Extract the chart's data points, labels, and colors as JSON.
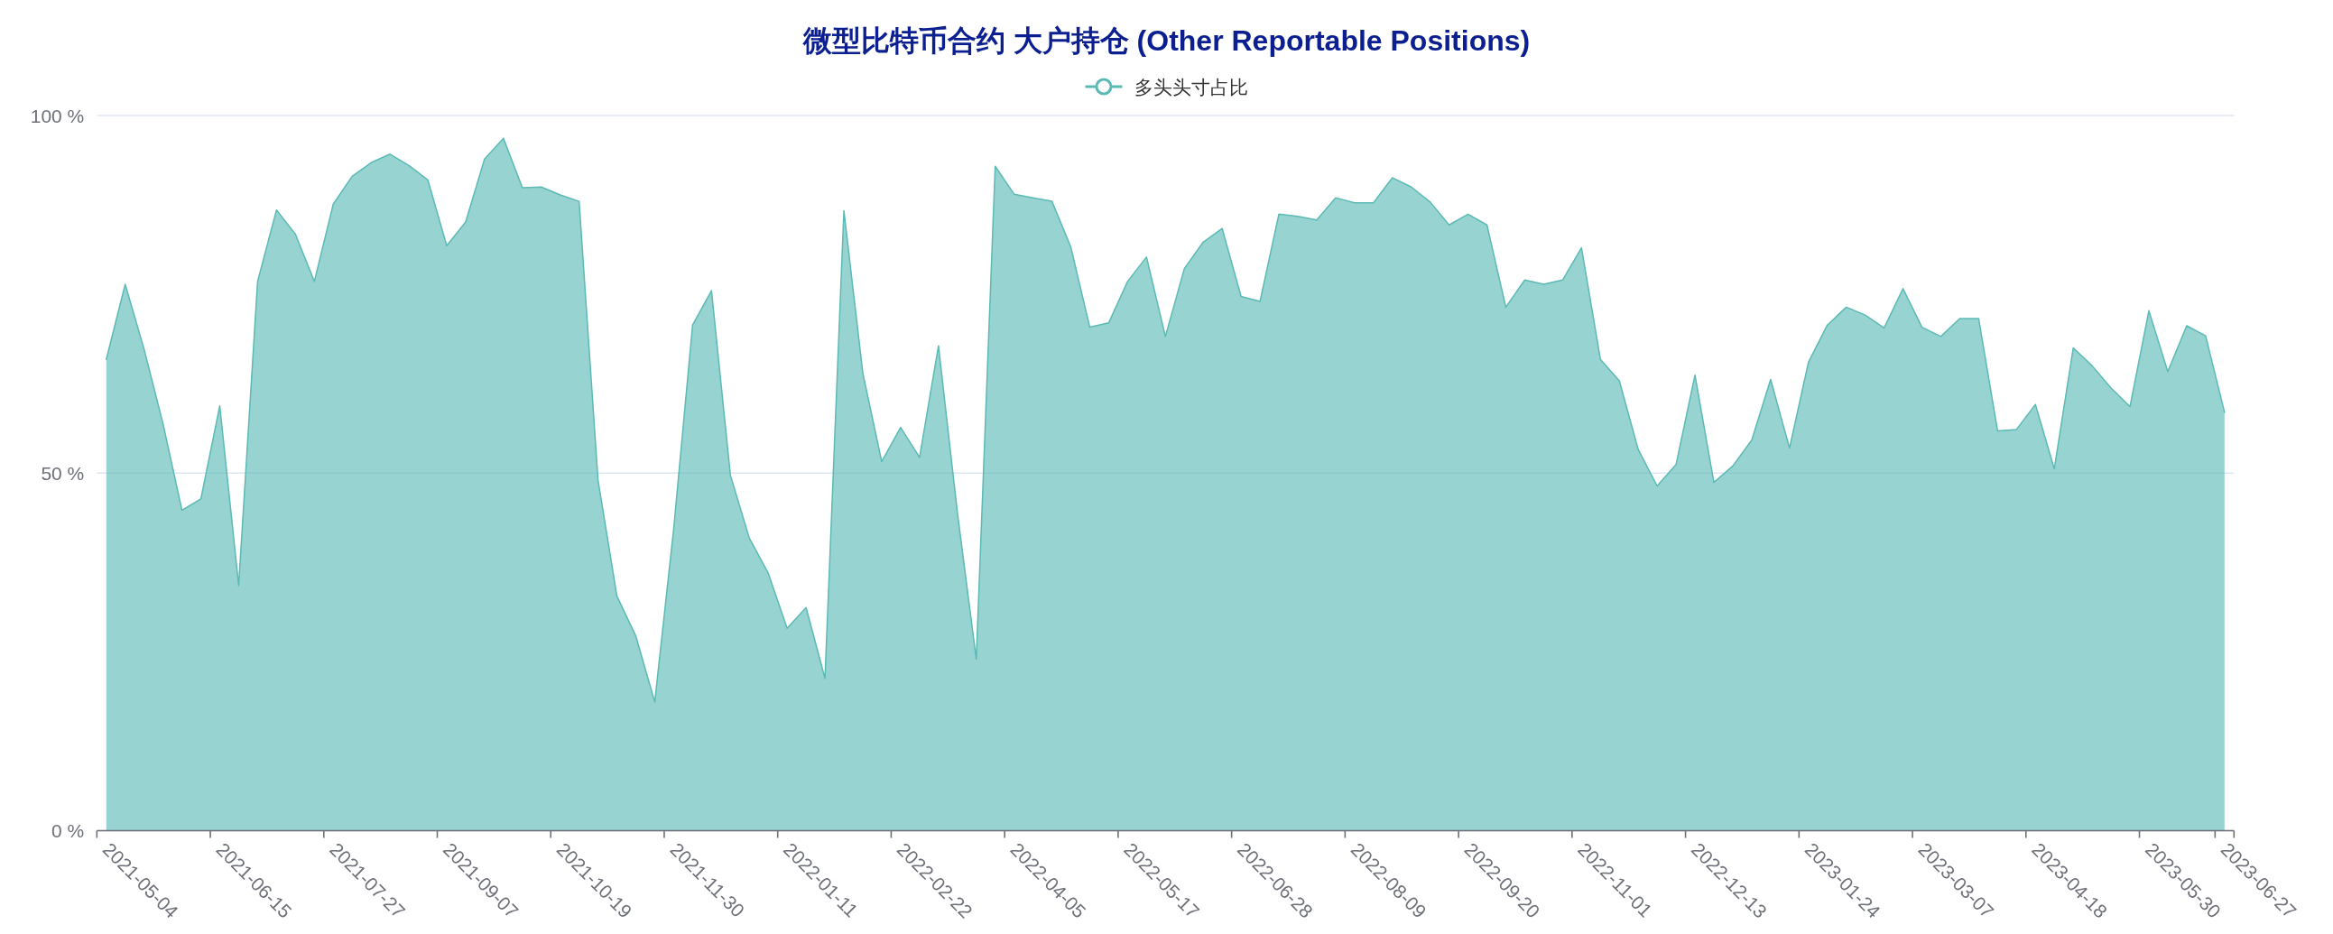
{
  "chart_data": {
    "type": "area",
    "title": "微型比特币合约 大户持仓 (Other Reportable Positions)",
    "categories": [
      "2021-05-04",
      null,
      null,
      null,
      null,
      null,
      "2021-06-15",
      null,
      null,
      null,
      null,
      null,
      "2021-07-27",
      null,
      null,
      null,
      null,
      null,
      "2021-09-07",
      null,
      null,
      null,
      null,
      null,
      "2021-10-19",
      null,
      null,
      null,
      null,
      null,
      "2021-11-30",
      null,
      null,
      null,
      null,
      null,
      "2022-01-11",
      null,
      null,
      null,
      null,
      null,
      "2022-02-22",
      null,
      null,
      null,
      null,
      null,
      "2022-04-05",
      null,
      null,
      null,
      null,
      null,
      "2022-05-17",
      null,
      null,
      null,
      null,
      null,
      "2022-06-28",
      null,
      null,
      null,
      null,
      null,
      "2022-08-09",
      null,
      null,
      null,
      null,
      null,
      "2022-09-20",
      null,
      null,
      null,
      null,
      null,
      "2022-11-01",
      null,
      null,
      null,
      null,
      null,
      "2022-12-13",
      null,
      null,
      null,
      null,
      null,
      "2023-01-24",
      null,
      null,
      null,
      null,
      null,
      "2023-03-07",
      null,
      null,
      null,
      null,
      null,
      "2023-04-18",
      null,
      null,
      null,
      null,
      null,
      "2023-05-30",
      null,
      null,
      null,
      "2023-06-27"
    ],
    "series": [
      {
        "name": "多头头寸占比",
        "color": "#5cbab5",
        "values": [
          65.9,
          76.4,
          67.3,
          56.9,
          44.8,
          46.4,
          59.4,
          34.3,
          76.8,
          86.8,
          83.4,
          76.8,
          87.6,
          91.5,
          93.4,
          94.6,
          93.0,
          91.0,
          81.8,
          85.1,
          93.9,
          96.8,
          89.9,
          90.0,
          88.9,
          88.0,
          49.0,
          32.8,
          27.2,
          18.0,
          42.2,
          70.7,
          75.5,
          49.7,
          40.9,
          36.0,
          28.3,
          31.2,
          21.3,
          86.7,
          64.0,
          51.6,
          56.4,
          52.2,
          67.8,
          44.5,
          24.0,
          92.9,
          89.0,
          88.5,
          88.0,
          81.6,
          70.4,
          71.0,
          76.8,
          80.2,
          69.1,
          78.6,
          82.3,
          84.2,
          74.7,
          74.0,
          86.2,
          85.9,
          85.4,
          88.5,
          87.8,
          87.8,
          91.3,
          90.0,
          87.9,
          84.7,
          86.2,
          84.7,
          73.2,
          77.0,
          76.4,
          77.0,
          81.5,
          65.9,
          62.9,
          53.3,
          48.2,
          51.2,
          63.7,
          48.7,
          51.0,
          54.6,
          63.1,
          53.5,
          65.5,
          70.7,
          73.2,
          72.1,
          70.3,
          75.8,
          70.4,
          69.1,
          71.6,
          71.6,
          55.9,
          56.1,
          59.6,
          50.6,
          67.5,
          65.0,
          61.9,
          59.3,
          72.7,
          64.2,
          70.6,
          69.2,
          58.5
        ]
      }
    ],
    "ylim": [
      0,
      100
    ],
    "yticks": [
      {
        "value": 0,
        "label": "0 %"
      },
      {
        "value": 50,
        "label": "50 %"
      },
      {
        "value": 100,
        "label": "100 %"
      }
    ],
    "grid": "y",
    "legend": "top"
  }
}
